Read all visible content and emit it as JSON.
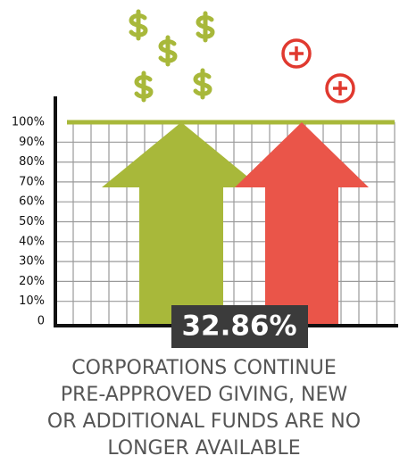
{
  "chart_data": {
    "type": "arrow",
    "values": [
      100,
      100
    ],
    "colors": [
      "#a8b83a",
      "#ea5549"
    ],
    "annotation": "32.86%",
    "ylim": [
      0,
      100
    ],
    "yticks": [
      0,
      {
        "value": 10,
        "label": "10%"
      },
      {
        "value": 20,
        "label": "20%"
      },
      {
        "value": 30,
        "label": "30%"
      },
      {
        "value": 40,
        "label": "40%"
      },
      {
        "value": 50,
        "label": "50%"
      },
      {
        "value": 60,
        "label": "60%"
      },
      {
        "value": 70,
        "label": "70%"
      },
      {
        "value": 80,
        "label": "80%"
      },
      {
        "value": 90,
        "label": "90%"
      },
      {
        "value": 100,
        "label": "100%"
      }
    ],
    "grid": true,
    "caption": [
      "CORPORATIONS CONTINUE",
      "PRE-APPROVED GIVING, NEW",
      "OR ADDITIONAL FUNDS ARE NO",
      "LONGER AVAILABLE"
    ]
  }
}
